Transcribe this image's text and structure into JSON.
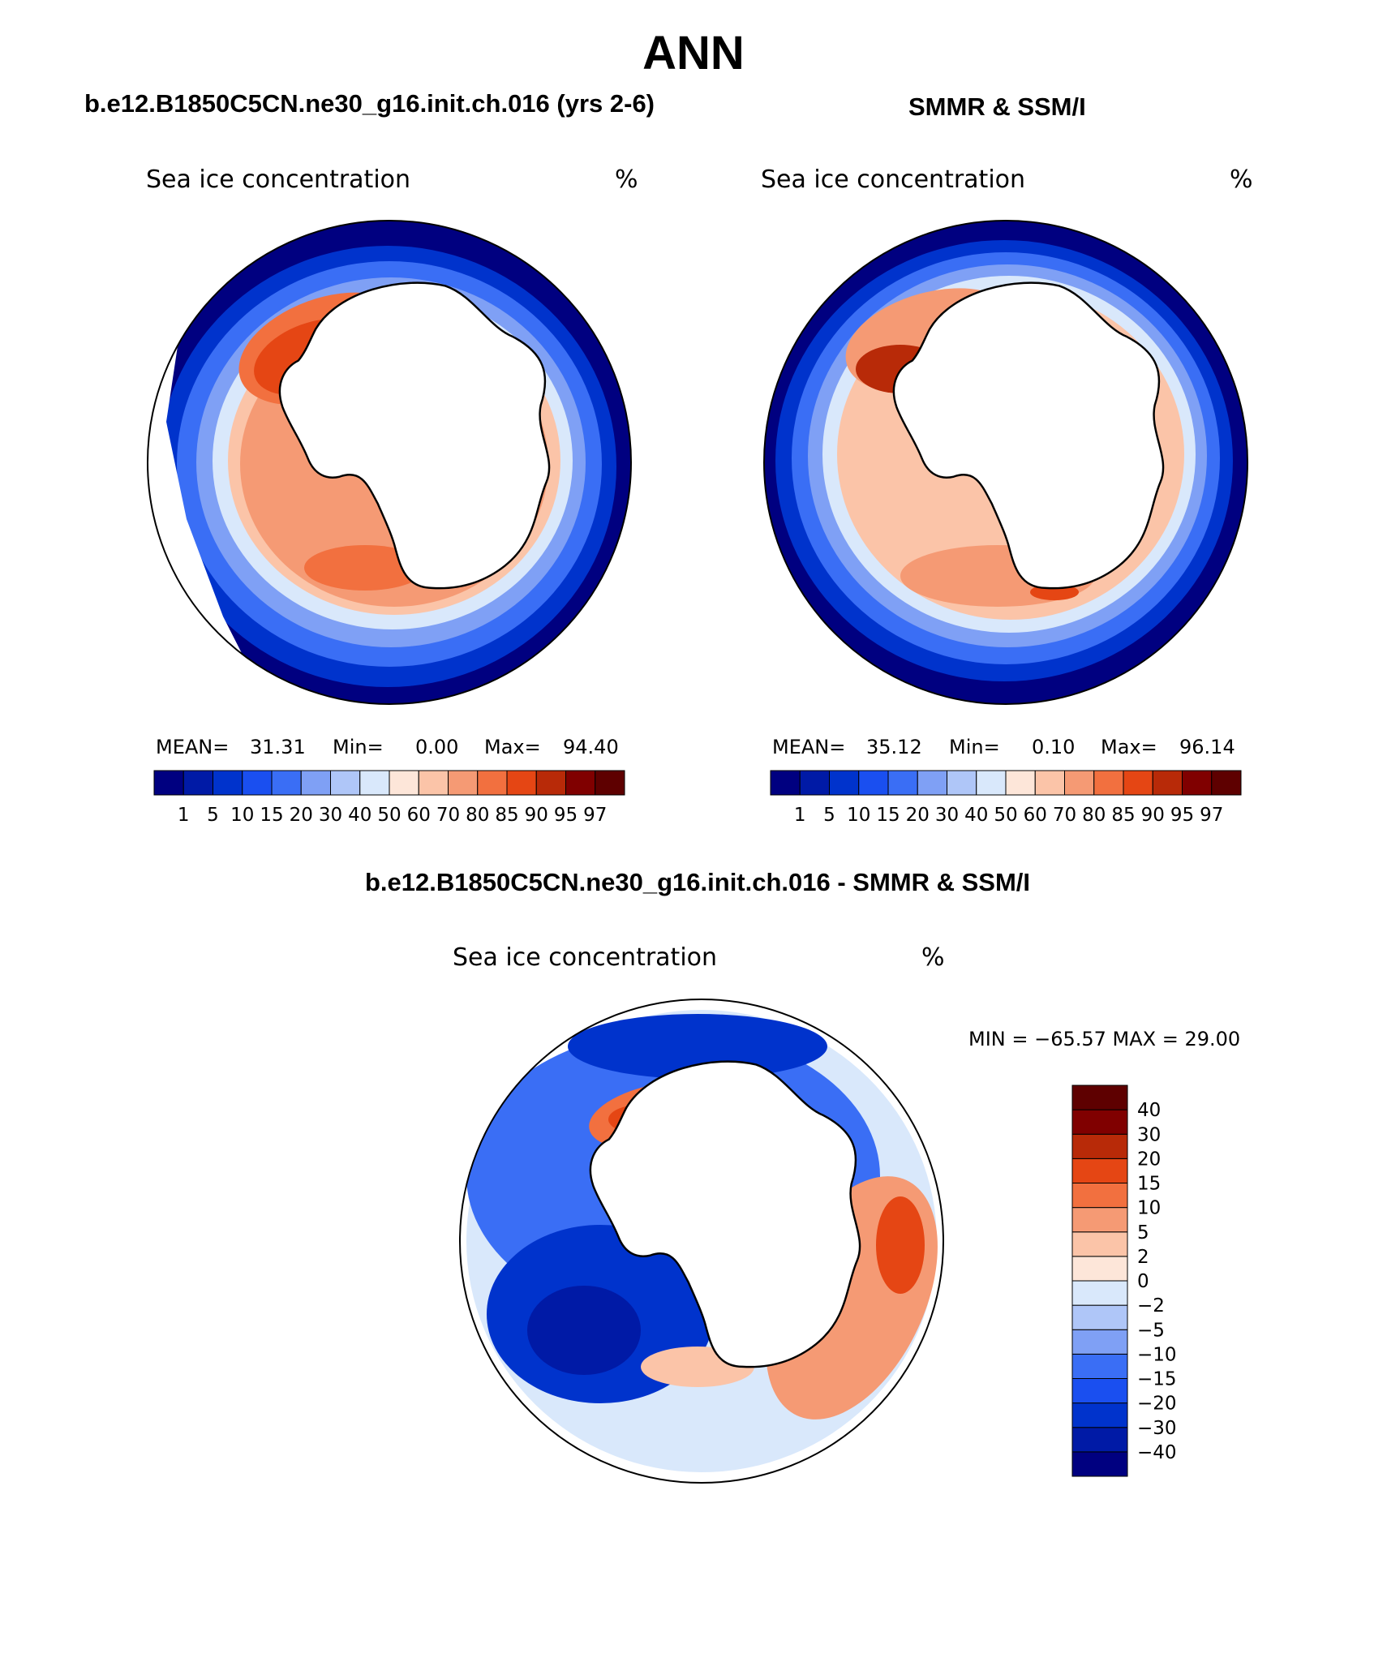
{
  "page": {
    "title": "ANN"
  },
  "panels": [
    {
      "id": "model",
      "header": "b.e12.B1850C5CN.ne30_g16.init.ch.016 (yrs 2-6)",
      "subtitle": "Sea ice concentration",
      "units": "%",
      "stats": {
        "mean_label": "MEAN=",
        "mean": "31.31",
        "min_label": "Min=",
        "min": "0.00",
        "max_label": "Max=",
        "max": "94.40"
      }
    },
    {
      "id": "obs",
      "header": "SMMR & SSM/I",
      "subtitle": "Sea ice concentration",
      "units": "%",
      "stats": {
        "mean_label": "MEAN=",
        "mean": "35.12",
        "min_label": "Min=",
        "min": "0.10",
        "max_label": "Max=",
        "max": "96.14"
      }
    },
    {
      "id": "diff",
      "header": "b.e12.B1850C5CN.ne30_g16.init.ch.016 - SMMR & SSM/I",
      "subtitle": "Sea ice concentration",
      "units": "%",
      "stats_text": "MIN = −65.57 MAX =   29.00"
    }
  ],
  "chart_data": [
    {
      "type": "heatmap",
      "title": "Sea ice concentration",
      "panel_header": "b.e12.B1850C5CN.ne30_g16.init.ch.016 (yrs 2-6)",
      "units": "%",
      "projection": "south polar stereographic",
      "mean": 31.31,
      "min": 0.0,
      "max": 94.4,
      "colorbar": {
        "orientation": "horizontal",
        "levels": [
          1,
          5,
          10,
          15,
          20,
          30,
          40,
          50,
          60,
          70,
          80,
          85,
          90,
          95,
          97
        ],
        "colors": [
          "#000080",
          "#001aa6",
          "#0033cc",
          "#1a4ff0",
          "#3a6ef5",
          "#7fa0f5",
          "#afc6f8",
          "#d9e8fb",
          "#fde6d9",
          "#fbc4a8",
          "#f59a74",
          "#f2703f",
          "#e54614",
          "#b82a08",
          "#800000",
          "#5e0000"
        ]
      }
    },
    {
      "type": "heatmap",
      "title": "Sea ice concentration",
      "panel_header": "SMMR & SSM/I",
      "units": "%",
      "projection": "south polar stereographic",
      "mean": 35.12,
      "min": 0.1,
      "max": 96.14,
      "colorbar": {
        "orientation": "horizontal",
        "levels": [
          1,
          5,
          10,
          15,
          20,
          30,
          40,
          50,
          60,
          70,
          80,
          85,
          90,
          95,
          97
        ],
        "colors": [
          "#000080",
          "#001aa6",
          "#0033cc",
          "#1a4ff0",
          "#3a6ef5",
          "#7fa0f5",
          "#afc6f8",
          "#d9e8fb",
          "#fde6d9",
          "#fbc4a8",
          "#f59a74",
          "#f2703f",
          "#e54614",
          "#b82a08",
          "#800000",
          "#5e0000"
        ]
      }
    },
    {
      "type": "heatmap",
      "title": "Sea ice concentration",
      "panel_header": "b.e12.B1850C5CN.ne30_g16.init.ch.016 - SMMR & SSM/I",
      "units": "%",
      "projection": "south polar stereographic",
      "min": -65.57,
      "max": 29.0,
      "colorbar": {
        "orientation": "vertical",
        "levels": [
          -40,
          -30,
          -20,
          -15,
          -10,
          -5,
          -2,
          0,
          2,
          5,
          10,
          15,
          20,
          30,
          40
        ],
        "level_labels": [
          "−40",
          "−30",
          "−20",
          "−15",
          "−10",
          "−5",
          "−2",
          "0",
          "2",
          "5",
          "10",
          "15",
          "20",
          "30",
          "40"
        ],
        "colors": [
          "#000080",
          "#001aa6",
          "#0033cc",
          "#1a4ff0",
          "#3a6ef5",
          "#7fa0f5",
          "#afc6f8",
          "#d9e8fb",
          "#fde6d9",
          "#fbc4a8",
          "#f59a74",
          "#f2703f",
          "#e54614",
          "#b82a08",
          "#800000",
          "#5e0000"
        ]
      }
    }
  ]
}
